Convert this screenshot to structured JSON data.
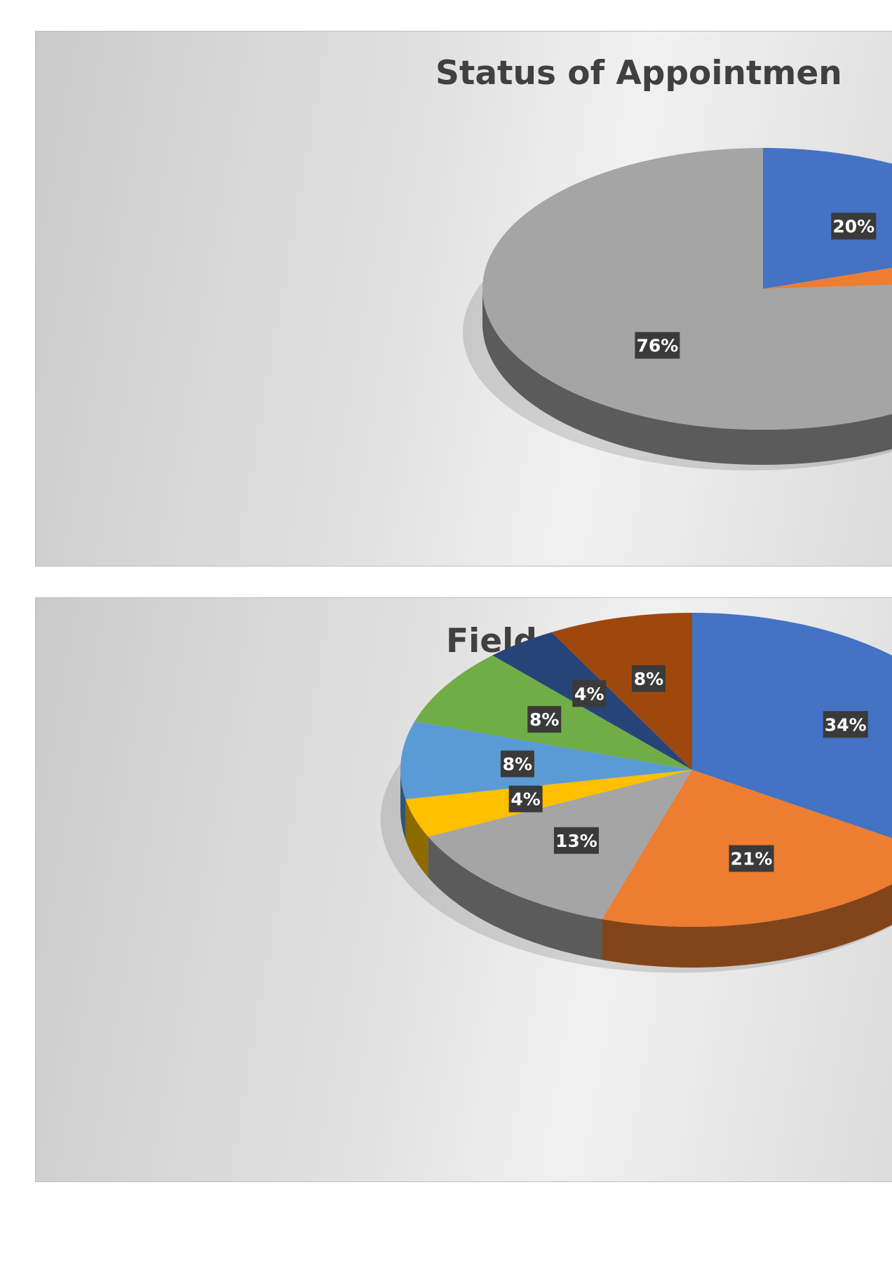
{
  "chart_data": [
    {
      "type": "pie",
      "title": "Status of Appointmen",
      "values": [
        20,
        4,
        76
      ],
      "labels": [
        "20%",
        "",
        "76%"
      ],
      "colors": [
        "#4472C4",
        "#ED7D31",
        "#A5A5A5"
      ],
      "style": "3d-pie"
    },
    {
      "type": "pie",
      "title": "Field of Specializatio",
      "values": [
        34,
        21,
        13,
        4,
        8,
        8,
        4,
        8
      ],
      "labels": [
        "34%",
        "21%",
        "13%",
        "4%",
        "8%",
        "8%",
        "4%",
        "8%"
      ],
      "colors": [
        "#4472C4",
        "#ED7D31",
        "#A5A5A5",
        "#FFC000",
        "#5B9BD5",
        "#70AD47",
        "#264478",
        "#9E480E"
      ],
      "style": "3d-pie"
    }
  ]
}
